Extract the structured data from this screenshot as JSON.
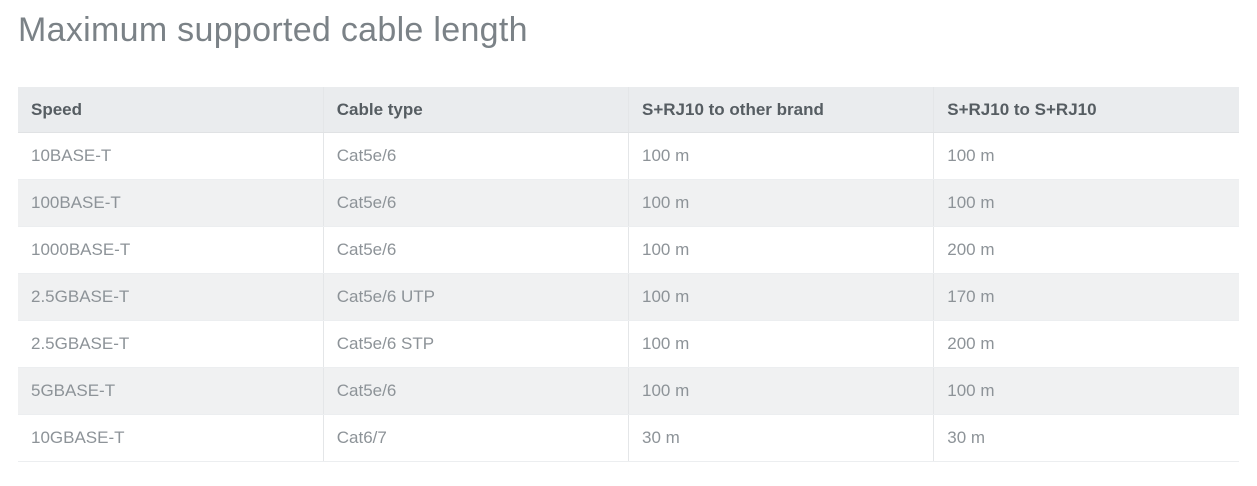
{
  "page": {
    "title": "Maximum supported cable length"
  },
  "table": {
    "columns": [
      "Speed",
      "Cable type",
      "S+RJ10 to other brand",
      "S+RJ10 to S+RJ10"
    ],
    "rows": [
      [
        "10BASE-T",
        "Cat5e/6",
        "100 m",
        "100 m"
      ],
      [
        "100BASE-T",
        "Cat5e/6",
        "100 m",
        "100 m"
      ],
      [
        "1000BASE-T",
        "Cat5e/6",
        "100 m",
        "200 m"
      ],
      [
        "2.5GBASE-T",
        "Cat5e/6 UTP",
        "100 m",
        "170 m"
      ],
      [
        "2.5GBASE-T",
        "Cat5e/6 STP",
        "100 m",
        "200 m"
      ],
      [
        "5GBASE-T",
        "Cat5e/6",
        "100 m",
        "100 m"
      ],
      [
        "10GBASE-T",
        "Cat6/7",
        "30 m",
        "30 m"
      ]
    ]
  },
  "colors": {
    "header_bg": "#eaecee",
    "row_alt_bg": "#f0f1f2",
    "row_bg": "#ffffff",
    "title_text": "#7b8287",
    "header_text": "#565d62",
    "cell_text": "#8d9398",
    "border_vertical": "#e4e6e8",
    "border_horizontal": "#eceef0"
  }
}
